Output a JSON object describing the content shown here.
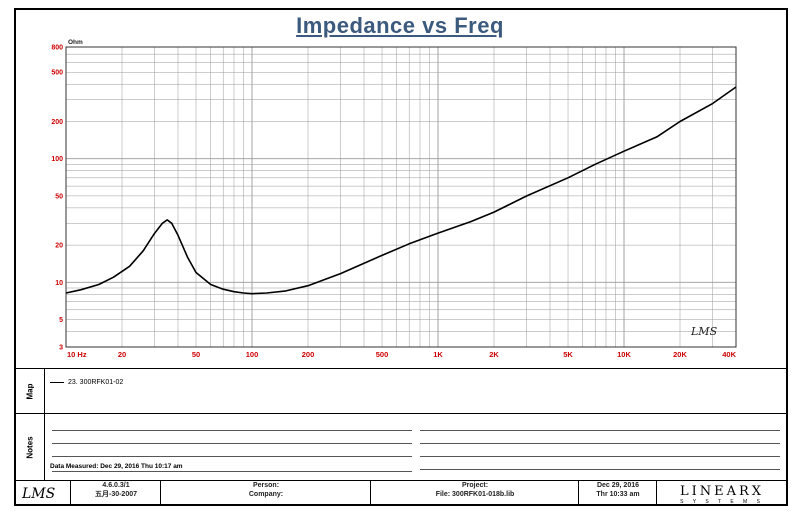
{
  "chart_data": {
    "type": "line",
    "title": "Impedance vs Freq",
    "ylabel": "Ohm",
    "x_scale": "log",
    "y_scale": "log",
    "xlim": [
      10,
      40000
    ],
    "ylim": [
      3,
      800
    ],
    "x_tick_values": [
      10,
      20,
      50,
      100,
      200,
      500,
      1000,
      2000,
      5000,
      10000,
      20000,
      40000
    ],
    "x_tick_labels": [
      "10  Hz",
      "20",
      "50",
      "100",
      "200",
      "500",
      "1K",
      "2K",
      "5K",
      "10K",
      "20K",
      "40K"
    ],
    "y_tick_values": [
      3,
      5,
      10,
      20,
      50,
      100,
      200,
      500,
      800
    ],
    "y_tick_labels": [
      "3",
      "5",
      "10",
      "20",
      "50",
      "100",
      "200",
      "500",
      "800"
    ],
    "grid": true,
    "series": [
      {
        "name": "23. 300RFK01-02",
        "color": "#000000",
        "x": [
          10,
          12,
          15,
          18,
          22,
          26,
          30,
          33,
          35,
          37,
          40,
          45,
          50,
          60,
          70,
          80,
          90,
          100,
          120,
          150,
          200,
          300,
          500,
          700,
          1000,
          1500,
          2000,
          3000,
          5000,
          7000,
          10000,
          15000,
          20000,
          30000,
          40000
        ],
        "y": [
          8.2,
          8.7,
          9.6,
          11,
          13.5,
          18,
          25,
          30,
          32,
          30,
          24,
          16,
          12,
          9.6,
          8.8,
          8.4,
          8.2,
          8.1,
          8.2,
          8.5,
          9.4,
          11.8,
          16.5,
          20.5,
          25,
          31,
          37,
          50,
          70,
          90,
          115,
          150,
          200,
          280,
          380
        ]
      }
    ]
  },
  "labels": {
    "lms_mark": "LMS",
    "side_map": "Map",
    "side_notes": "Notes",
    "data_measured": "Data Measured: Dec 29, 2016  Thu  10:17 am",
    "footer_version": "4.6.0.3/1",
    "footer_version_date": "五月-30-2007",
    "footer_person_label": "Person:",
    "footer_company_label": "Company:",
    "footer_project_label": "Project:",
    "footer_file": "File: 300RFK01-018b.lib",
    "footer_date": "Dec 29, 2016",
    "footer_time": "Thr 10:33 am",
    "brand_big": "LINEARX",
    "brand_small": "S Y S T E M S"
  },
  "colors": {
    "title": "#3b5a7e",
    "curve": "#000000",
    "axis_labels": "#cc0000",
    "grid": "#9a9a9a"
  }
}
